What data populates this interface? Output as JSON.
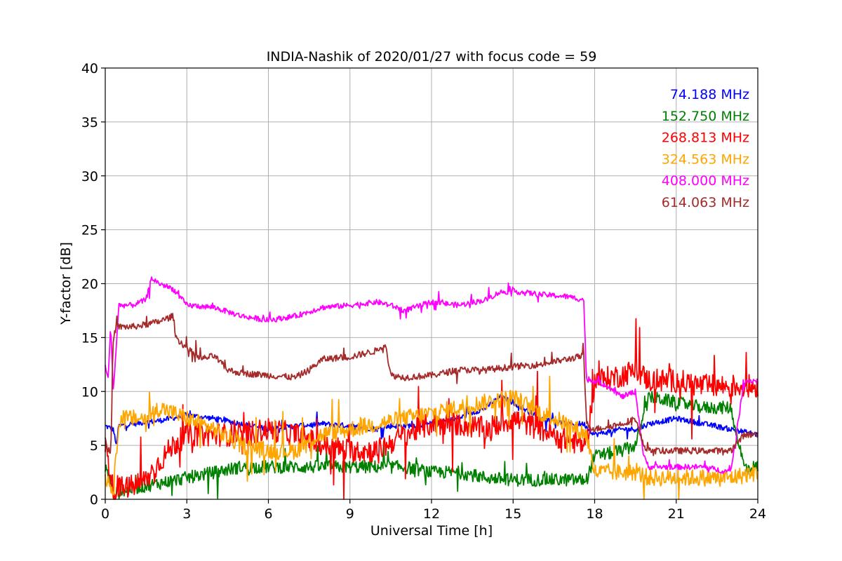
{
  "chart_data": {
    "type": "line",
    "title": "INDIA-Nashik of 2020/01/27 with focus code = 59",
    "xlabel": "Universal Time [h]",
    "ylabel": "Y-factor [dB]",
    "xlim": [
      0,
      24
    ],
    "ylim": [
      0,
      40
    ],
    "xticks": [
      "0",
      "3",
      "6",
      "9",
      "12",
      "15",
      "18",
      "21",
      "24"
    ],
    "yticks": [
      "0",
      "5",
      "10",
      "15",
      "20",
      "25",
      "30",
      "35",
      "40"
    ],
    "grid": true,
    "legend_position": "top-right",
    "series": [
      {
        "name": "74.188 MHz",
        "color": "#0000ff",
        "noise": 0.25,
        "x": [
          0,
          0.3,
          0.4,
          0.5,
          1,
          2,
          3,
          4,
          5,
          6,
          7,
          8,
          9,
          10,
          10.5,
          11,
          12,
          13,
          14,
          14.5,
          15,
          16,
          17,
          17.6,
          18,
          19,
          19.5,
          20,
          21,
          22,
          23,
          24
        ],
        "y": [
          6.8,
          6.5,
          5.0,
          6.8,
          7.0,
          7.3,
          7.8,
          7.5,
          7.0,
          6.5,
          6.8,
          7.0,
          6.8,
          6.5,
          6.8,
          6.8,
          7.0,
          7.5,
          8.5,
          9.5,
          9.0,
          7.5,
          7.0,
          7.0,
          6.0,
          6.5,
          6.5,
          7.0,
          7.5,
          7.0,
          6.5,
          6.0
        ]
      },
      {
        "name": "152.750 MHz",
        "color": "#008000",
        "noise": 0.6,
        "x": [
          0,
          0.3,
          1,
          2,
          3,
          4,
          5,
          6,
          7,
          8,
          9,
          10,
          10.5,
          11,
          12,
          13,
          14,
          15,
          16,
          17,
          17.7,
          18,
          19,
          19.5,
          20,
          21,
          22,
          23,
          23.5,
          24
        ],
        "y": [
          3.0,
          0.5,
          1.0,
          1.5,
          2.0,
          2.5,
          3.0,
          3.0,
          3.0,
          3.0,
          3.0,
          3.0,
          3.0,
          3.0,
          2.5,
          2.5,
          2.0,
          1.8,
          1.8,
          1.8,
          1.8,
          4.0,
          4.5,
          5.0,
          9.5,
          9.0,
          8.5,
          8.5,
          3.0,
          3.0
        ]
      },
      {
        "name": "268.813 MHz",
        "color": "#ff0000",
        "noise": 1.1,
        "x": [
          0,
          0.3,
          0.5,
          1,
          1.5,
          2,
          2.5,
          3,
          4,
          5,
          6,
          7,
          8,
          9,
          10,
          11,
          12,
          13,
          14,
          15,
          16,
          17,
          17.7,
          18,
          19,
          19.5,
          20,
          21,
          22,
          23,
          24
        ],
        "y": [
          5.0,
          0.8,
          1.0,
          1.2,
          1.8,
          3.5,
          5.0,
          6.0,
          6.0,
          6.0,
          6.5,
          6.0,
          5.0,
          4.5,
          4.5,
          6.0,
          7.0,
          7.0,
          6.5,
          7.5,
          6.5,
          5.5,
          5.0,
          11.0,
          11.5,
          12.0,
          11.0,
          11.0,
          10.5,
          10.5,
          10.5
        ]
      },
      {
        "name": "324.563 MHz",
        "color": "#ffa500",
        "noise": 0.8,
        "x": [
          0,
          0.2,
          0.3,
          0.5,
          1,
          1.5,
          2,
          2.5,
          3,
          4,
          5,
          6,
          7,
          7.5,
          8,
          9,
          10,
          11,
          12,
          13,
          14,
          15,
          16,
          17,
          17.7,
          18,
          19,
          19.5,
          20,
          21,
          22,
          23,
          24
        ],
        "y": [
          2.0,
          1.5,
          0.5,
          7.5,
          7.5,
          7.5,
          8.5,
          8.0,
          7.5,
          6.5,
          5.0,
          4.5,
          4.5,
          5.5,
          6.0,
          6.5,
          7.0,
          7.5,
          8.0,
          8.5,
          9.0,
          9.5,
          8.0,
          7.0,
          6.0,
          2.5,
          2.5,
          2.5,
          2.0,
          2.0,
          2.0,
          2.0,
          2.5
        ]
      },
      {
        "name": "408.000 MHz",
        "color": "#ff00ff",
        "noise": 0.25,
        "x": [
          0,
          0.1,
          0.2,
          0.3,
          0.5,
          1,
          1.5,
          1.7,
          2,
          2.5,
          3,
          4,
          5,
          6,
          7,
          8,
          9,
          10,
          10.5,
          11,
          12,
          13,
          14,
          14.5,
          15,
          16,
          17,
          17.6,
          17.7,
          18,
          18.5,
          19,
          19.5,
          19.8,
          20,
          21,
          22,
          23,
          23.5,
          24
        ],
        "y": [
          12.5,
          11.0,
          16.0,
          10.0,
          18.0,
          18.0,
          18.5,
          20.5,
          20.0,
          19.5,
          18.0,
          17.8,
          17.0,
          16.6,
          17.0,
          17.8,
          18.0,
          18.3,
          18.0,
          17.5,
          18.3,
          18.0,
          18.5,
          19.2,
          19.3,
          19.0,
          18.8,
          18.5,
          11.0,
          11.0,
          10.5,
          9.5,
          10.0,
          4.0,
          3.0,
          3.0,
          3.0,
          2.5,
          11.0,
          11.0
        ]
      },
      {
        "name": "614.063 MHz",
        "color": "#a52a2a",
        "noise": 0.3,
        "x": [
          0,
          0.2,
          0.3,
          0.4,
          1,
          1.5,
          2,
          2.5,
          2.6,
          3,
          3.5,
          4,
          4.5,
          5,
          6,
          7,
          7.5,
          8,
          9,
          10,
          10.3,
          10.5,
          11,
          12,
          13,
          14,
          15,
          16,
          17,
          17.6,
          17.7,
          18,
          19,
          19.5,
          19.8,
          20,
          21,
          22,
          23,
          23.5,
          24
        ],
        "y": [
          5.5,
          4.0,
          15.0,
          16.0,
          16.0,
          16.2,
          16.5,
          17.0,
          15.0,
          14.0,
          13.0,
          13.3,
          12.0,
          11.7,
          11.5,
          11.3,
          12.0,
          13.0,
          13.2,
          13.8,
          14.5,
          11.5,
          11.3,
          11.5,
          12.0,
          12.0,
          12.3,
          12.5,
          13.0,
          13.3,
          7.0,
          6.5,
          7.0,
          7.5,
          5.0,
          4.5,
          4.5,
          4.5,
          4.5,
          6.0,
          6.0
        ]
      }
    ]
  }
}
